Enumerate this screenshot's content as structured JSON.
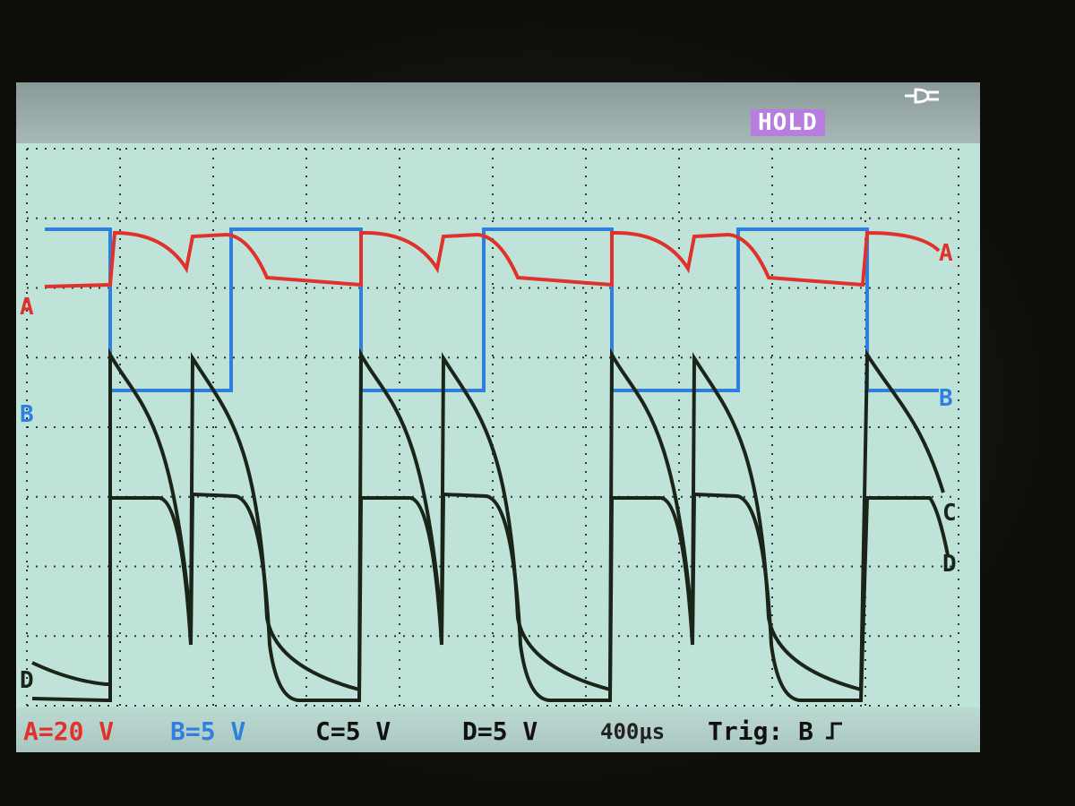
{
  "header": {
    "hold_label": "HOLD",
    "plug_icon": "power-plug-icon"
  },
  "channels": {
    "a": {
      "label": "A",
      "scale": "A=20 V",
      "color": "#e0322a"
    },
    "b": {
      "label": "B",
      "scale": "B=5 V",
      "color": "#2f7fe0"
    },
    "c": {
      "label": "C",
      "scale": "C=5 V",
      "color": "#1a2418"
    },
    "d": {
      "label": "D",
      "scale": "D=5 V",
      "color": "#1a2418"
    }
  },
  "status": {
    "timebase": "400μs",
    "trigger": "Trig: B",
    "trigger_icon": "rising-edge-icon"
  },
  "colors": {
    "screen_bg": "#c0e3d9",
    "grid_dot": "#2a3a34",
    "hold_bg": "#b77ee0"
  }
}
